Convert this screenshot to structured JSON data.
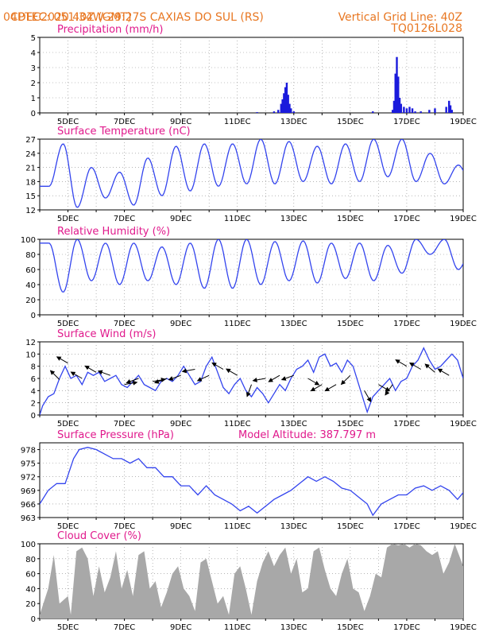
{
  "header": {
    "source": "CPTEC:",
    "coords": "051:34W-29:27S",
    "location": "CAXIAS DO SUL (RS)",
    "run": "04DEC2020 40Z (GMT)",
    "grid_note": "Vertical Grid Line: 40Z",
    "model": "TQ0126L028"
  },
  "chart_data": {
    "x_tick_labels": [
      "5DEC",
      "7DEC",
      "9DEC",
      "11DEC",
      "13DEC",
      "15DEC",
      "17DEC",
      "19DEC"
    ],
    "x_range_days": [
      4.0,
      19.0
    ],
    "panels": [
      {
        "id": "precip",
        "type": "bar",
        "title": "Precipitation (mm/h)",
        "ylim": [
          0,
          5
        ],
        "yticks": [
          0,
          1,
          2,
          3,
          4,
          5
        ],
        "color": "#1a1adc",
        "points": [
          [
            11.7,
            0.05
          ],
          [
            12.3,
            0.1
          ],
          [
            12.45,
            0.2
          ],
          [
            12.55,
            0.6
          ],
          [
            12.6,
            0.9
          ],
          [
            12.65,
            1.3
          ],
          [
            12.7,
            1.7
          ],
          [
            12.75,
            2.0
          ],
          [
            12.8,
            1.2
          ],
          [
            12.85,
            0.6
          ],
          [
            12.9,
            0.3
          ],
          [
            13.0,
            0.1
          ],
          [
            15.8,
            0.1
          ],
          [
            16.5,
            0.2
          ],
          [
            16.55,
            0.8
          ],
          [
            16.6,
            2.6
          ],
          [
            16.65,
            3.7
          ],
          [
            16.7,
            2.4
          ],
          [
            16.75,
            1.0
          ],
          [
            16.8,
            0.6
          ],
          [
            16.9,
            0.4
          ],
          [
            17.0,
            0.3
          ],
          [
            17.1,
            0.4
          ],
          [
            17.2,
            0.3
          ],
          [
            17.3,
            0.1
          ],
          [
            17.5,
            0.1
          ],
          [
            17.8,
            0.2
          ],
          [
            18.0,
            0.3
          ],
          [
            18.4,
            0.4
          ],
          [
            18.5,
            0.8
          ],
          [
            18.55,
            0.5
          ],
          [
            18.6,
            0.2
          ]
        ]
      },
      {
        "id": "temp",
        "type": "line",
        "title": "Surface Temperature (nC)",
        "ylim": [
          12,
          27
        ],
        "yticks": [
          12,
          15,
          18,
          21,
          24,
          27
        ],
        "color": "#3344ee",
        "min_base": [
          17,
          12.5,
          14.5,
          13,
          15,
          16,
          17,
          17.5,
          17.5,
          18,
          17.5,
          18,
          19,
          18,
          17.5,
          17
        ],
        "max_base": [
          26,
          21,
          20,
          23,
          25.5,
          26,
          26,
          27,
          26.5,
          25.5,
          26,
          27,
          27,
          24,
          21.5
        ],
        "min_phase": 0.33,
        "max_phase": 0.83
      },
      {
        "id": "rh",
        "type": "line",
        "title": "Relative Humidity (%)",
        "ylim": [
          0,
          100
        ],
        "yticks": [
          0,
          20,
          40,
          60,
          80,
          100
        ],
        "color": "#3344ee",
        "max_base": [
          95,
          100,
          95,
          95,
          90,
          95,
          100,
          100,
          97,
          98,
          95,
          95,
          92,
          100,
          100,
          90
        ],
        "min_base": [
          30,
          45,
          40,
          45,
          40,
          35,
          35,
          40,
          45,
          42,
          48,
          45,
          55,
          80,
          60
        ],
        "max_phase": 0.33,
        "min_phase": 0.83
      },
      {
        "id": "wind",
        "type": "line",
        "title": "Surface Wind (m/s)",
        "ylim": [
          0,
          12
        ],
        "yticks": [
          0,
          2,
          4,
          6,
          8,
          10,
          12
        ],
        "color": "#3344ee",
        "points": [
          [
            4.0,
            0
          ],
          [
            4.1,
            1.5
          ],
          [
            4.3,
            3
          ],
          [
            4.5,
            3.5
          ],
          [
            4.7,
            6
          ],
          [
            4.9,
            8
          ],
          [
            5.1,
            6
          ],
          [
            5.3,
            6.5
          ],
          [
            5.5,
            5
          ],
          [
            5.7,
            7
          ],
          [
            5.9,
            6.5
          ],
          [
            6.1,
            7
          ],
          [
            6.3,
            5.5
          ],
          [
            6.5,
            6
          ],
          [
            6.7,
            6.5
          ],
          [
            6.9,
            5
          ],
          [
            7.1,
            4.5
          ],
          [
            7.3,
            5.5
          ],
          [
            7.5,
            6.5
          ],
          [
            7.7,
            5
          ],
          [
            7.9,
            4.5
          ],
          [
            8.1,
            4
          ],
          [
            8.3,
            5.5
          ],
          [
            8.5,
            6
          ],
          [
            8.7,
            5.5
          ],
          [
            8.9,
            6.5
          ],
          [
            9.1,
            8
          ],
          [
            9.3,
            6.5
          ],
          [
            9.5,
            5
          ],
          [
            9.7,
            5.5
          ],
          [
            9.9,
            8
          ],
          [
            10.1,
            9.5
          ],
          [
            10.3,
            7
          ],
          [
            10.5,
            4.5
          ],
          [
            10.7,
            3.5
          ],
          [
            10.9,
            5
          ],
          [
            11.1,
            6
          ],
          [
            11.3,
            4
          ],
          [
            11.5,
            3
          ],
          [
            11.7,
            4.5
          ],
          [
            11.9,
            3.5
          ],
          [
            12.1,
            2
          ],
          [
            12.3,
            3.5
          ],
          [
            12.5,
            5
          ],
          [
            12.7,
            4
          ],
          [
            12.9,
            6
          ],
          [
            13.1,
            7.5
          ],
          [
            13.3,
            8
          ],
          [
            13.5,
            9
          ],
          [
            13.7,
            7
          ],
          [
            13.9,
            9.5
          ],
          [
            14.1,
            10
          ],
          [
            14.3,
            8
          ],
          [
            14.5,
            8.5
          ],
          [
            14.7,
            7
          ],
          [
            14.9,
            9
          ],
          [
            15.1,
            8
          ],
          [
            15.3,
            5
          ],
          [
            15.5,
            2
          ],
          [
            15.6,
            0.5
          ],
          [
            15.8,
            3
          ],
          [
            16.0,
            4
          ],
          [
            16.2,
            5
          ],
          [
            16.4,
            6
          ],
          [
            16.6,
            4
          ],
          [
            16.8,
            5.5
          ],
          [
            17.0,
            6
          ],
          [
            17.2,
            8
          ],
          [
            17.4,
            9
          ],
          [
            17.6,
            11
          ],
          [
            17.8,
            9
          ],
          [
            18.0,
            7.5
          ],
          [
            18.2,
            8
          ],
          [
            18.4,
            9
          ],
          [
            18.6,
            10
          ],
          [
            18.8,
            9
          ],
          [
            19.0,
            6
          ]
        ],
        "arrows": [
          [
            4.7,
            5.8,
            315
          ],
          [
            5.0,
            8.5,
            300
          ],
          [
            5.5,
            6,
            300
          ],
          [
            6.0,
            7,
            300
          ],
          [
            6.5,
            6.5,
            290
          ],
          [
            7.0,
            5,
            80
          ],
          [
            7.5,
            6,
            250
          ],
          [
            8.0,
            5.5,
            80
          ],
          [
            8.5,
            6,
            250
          ],
          [
            9.0,
            6.5,
            250
          ],
          [
            9.5,
            7.5,
            260
          ],
          [
            10.0,
            6.5,
            245
          ],
          [
            10.5,
            7.5,
            300
          ],
          [
            11.0,
            6.5,
            300
          ],
          [
            11.5,
            5,
            200
          ],
          [
            12.0,
            6,
            260
          ],
          [
            12.5,
            6.5,
            240
          ],
          [
            13.0,
            6.5,
            250
          ],
          [
            13.5,
            6,
            120
          ],
          [
            14.0,
            5,
            240
          ],
          [
            14.5,
            5,
            240
          ],
          [
            15.0,
            6.5,
            225
          ],
          [
            15.5,
            4,
            150
          ],
          [
            16.0,
            5,
            120
          ],
          [
            16.5,
            5,
            215
          ],
          [
            17.0,
            8,
            300
          ],
          [
            17.5,
            7.5,
            300
          ],
          [
            18.0,
            7,
            310
          ],
          [
            18.5,
            6.5,
            300
          ]
        ]
      },
      {
        "id": "pres",
        "type": "line",
        "title": "Surface Pressure (hPa)",
        "subtitle": "Model Altitude: 387.797 m",
        "ylim": [
          963,
          979.5
        ],
        "yticks": [
          963,
          966,
          969,
          972,
          975,
          978
        ],
        "color": "#3344ee",
        "points": [
          [
            4.0,
            966
          ],
          [
            4.3,
            969
          ],
          [
            4.6,
            970.5
          ],
          [
            4.9,
            970.5
          ],
          [
            5.2,
            976
          ],
          [
            5.4,
            978
          ],
          [
            5.7,
            978.5
          ],
          [
            6.0,
            978
          ],
          [
            6.3,
            977
          ],
          [
            6.6,
            976
          ],
          [
            6.9,
            976
          ],
          [
            7.2,
            975
          ],
          [
            7.5,
            976
          ],
          [
            7.8,
            974
          ],
          [
            8.1,
            974
          ],
          [
            8.4,
            972
          ],
          [
            8.7,
            972
          ],
          [
            9.0,
            970
          ],
          [
            9.3,
            970
          ],
          [
            9.6,
            968
          ],
          [
            9.9,
            970
          ],
          [
            10.2,
            968
          ],
          [
            10.5,
            967
          ],
          [
            10.8,
            966
          ],
          [
            11.1,
            964.5
          ],
          [
            11.4,
            965.5
          ],
          [
            11.7,
            964
          ],
          [
            12.0,
            965.5
          ],
          [
            12.3,
            967
          ],
          [
            12.6,
            968
          ],
          [
            12.9,
            969
          ],
          [
            13.2,
            970.5
          ],
          [
            13.5,
            972
          ],
          [
            13.8,
            971
          ],
          [
            14.1,
            972
          ],
          [
            14.4,
            971
          ],
          [
            14.7,
            969.5
          ],
          [
            15.0,
            969
          ],
          [
            15.3,
            967.5
          ],
          [
            15.6,
            966
          ],
          [
            15.8,
            963.5
          ],
          [
            16.1,
            966
          ],
          [
            16.4,
            967
          ],
          [
            16.7,
            968
          ],
          [
            17.0,
            968
          ],
          [
            17.3,
            969.5
          ],
          [
            17.6,
            970
          ],
          [
            17.9,
            969
          ],
          [
            18.2,
            970
          ],
          [
            18.5,
            969
          ],
          [
            18.8,
            967
          ],
          [
            19.0,
            968.5
          ]
        ]
      },
      {
        "id": "cloud",
        "type": "area",
        "title": "Cloud Cover (%)",
        "ylim": [
          0,
          100
        ],
        "yticks": [
          0,
          20,
          40,
          60,
          80,
          100
        ],
        "color": "#a8a8a8",
        "points": [
          [
            4.0,
            5
          ],
          [
            4.3,
            40
          ],
          [
            4.5,
            85
          ],
          [
            4.7,
            20
          ],
          [
            5.0,
            30
          ],
          [
            5.1,
            5
          ],
          [
            5.3,
            90
          ],
          [
            5.5,
            95
          ],
          [
            5.7,
            80
          ],
          [
            5.9,
            30
          ],
          [
            6.1,
            70
          ],
          [
            6.3,
            35
          ],
          [
            6.5,
            55
          ],
          [
            6.7,
            90
          ],
          [
            6.9,
            40
          ],
          [
            7.1,
            65
          ],
          [
            7.3,
            30
          ],
          [
            7.5,
            85
          ],
          [
            7.7,
            90
          ],
          [
            7.9,
            40
          ],
          [
            8.1,
            50
          ],
          [
            8.3,
            15
          ],
          [
            8.5,
            35
          ],
          [
            8.7,
            60
          ],
          [
            8.9,
            70
          ],
          [
            9.1,
            40
          ],
          [
            9.3,
            30
          ],
          [
            9.5,
            10
          ],
          [
            9.7,
            75
          ],
          [
            9.9,
            80
          ],
          [
            10.1,
            50
          ],
          [
            10.3,
            20
          ],
          [
            10.5,
            30
          ],
          [
            10.7,
            5
          ],
          [
            10.9,
            60
          ],
          [
            11.1,
            70
          ],
          [
            11.3,
            40
          ],
          [
            11.5,
            5
          ],
          [
            11.7,
            50
          ],
          [
            11.9,
            75
          ],
          [
            12.1,
            90
          ],
          [
            12.3,
            70
          ],
          [
            12.5,
            85
          ],
          [
            12.7,
            95
          ],
          [
            12.9,
            60
          ],
          [
            13.1,
            80
          ],
          [
            13.3,
            35
          ],
          [
            13.5,
            40
          ],
          [
            13.7,
            90
          ],
          [
            13.9,
            95
          ],
          [
            14.1,
            65
          ],
          [
            14.3,
            40
          ],
          [
            14.5,
            30
          ],
          [
            14.7,
            60
          ],
          [
            14.9,
            80
          ],
          [
            15.1,
            40
          ],
          [
            15.3,
            35
          ],
          [
            15.5,
            10
          ],
          [
            15.7,
            30
          ],
          [
            15.9,
            60
          ],
          [
            16.1,
            55
          ],
          [
            16.3,
            95
          ],
          [
            16.5,
            100
          ],
          [
            16.7,
            98
          ],
          [
            16.9,
            100
          ],
          [
            17.1,
            95
          ],
          [
            17.3,
            100
          ],
          [
            17.5,
            98
          ],
          [
            17.7,
            90
          ],
          [
            17.9,
            85
          ],
          [
            18.1,
            90
          ],
          [
            18.3,
            60
          ],
          [
            18.5,
            75
          ],
          [
            18.7,
            100
          ],
          [
            18.9,
            80
          ],
          [
            19.0,
            70
          ]
        ]
      }
    ]
  }
}
